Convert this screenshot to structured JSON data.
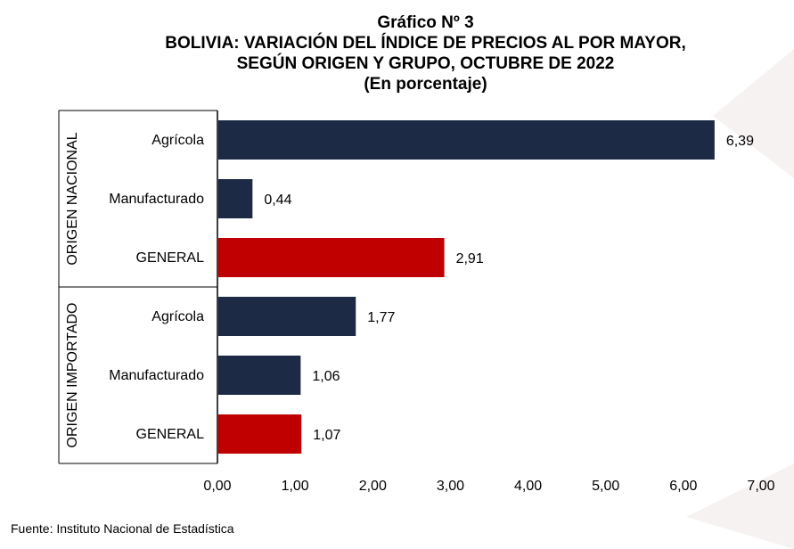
{
  "chart_data": {
    "type": "bar",
    "orientation": "horizontal",
    "title_lines": [
      "Gráfico Nº 3",
      "BOLIVIA: VARIACIÓN DEL ÍNDICE DE PRECIOS AL POR MAYOR,",
      "SEGÚN ORIGEN Y GRUPO, OCTUBRE DE 2022",
      "(En porcentaje)"
    ],
    "groups": [
      {
        "name": "ORIGEN NACIONAL",
        "bars": [
          {
            "category": "Agrícola",
            "value": 6.39,
            "label": "6,39",
            "color": "#1c2a45"
          },
          {
            "category": "Manufacturado",
            "value": 0.44,
            "label": "0,44",
            "color": "#1c2a45"
          },
          {
            "category": "GENERAL",
            "value": 2.91,
            "label": "2,91",
            "color": "#c00000"
          }
        ]
      },
      {
        "name": "ORIGEN IMPORTADO",
        "bars": [
          {
            "category": "Agrícola",
            "value": 1.77,
            "label": "1,77",
            "color": "#1c2a45"
          },
          {
            "category": "Manufacturado",
            "value": 1.06,
            "label": "1,06",
            "color": "#1c2a45"
          },
          {
            "category": "GENERAL",
            "value": 1.07,
            "label": "1,07",
            "color": "#c00000"
          }
        ]
      }
    ],
    "xlim": [
      0,
      7
    ],
    "xticks": [
      0,
      1,
      2,
      3,
      4,
      5,
      6,
      7
    ],
    "xtick_labels": [
      "0,00",
      "1,00",
      "2,00",
      "3,00",
      "4,00",
      "5,00",
      "6,00",
      "7,00"
    ],
    "grid": false,
    "legend": false
  },
  "source": "Fuente: Instituto Nacional de Estadística"
}
